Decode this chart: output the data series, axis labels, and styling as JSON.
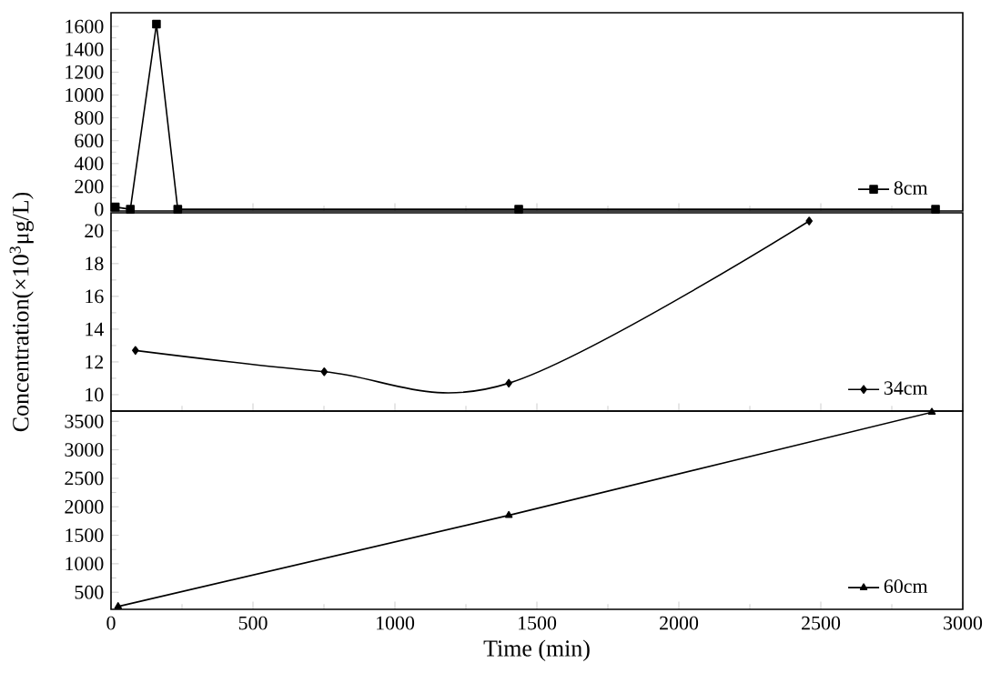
{
  "chart_data": [
    {
      "type": "line",
      "xlim": [
        0,
        3000
      ],
      "xticks": [
        0,
        500,
        1000,
        1500,
        2000,
        2500,
        3000
      ],
      "ylim": [
        -15,
        1720
      ],
      "yticks": [
        0,
        200,
        400,
        600,
        800,
        1000,
        1200,
        1400,
        1600
      ],
      "tick_labels": "y",
      "marker": "square",
      "legend": "bottom right",
      "series": [
        {
          "name": "8cm",
          "color": "#000000",
          "x": [
            15,
            68,
            160,
            235,
            1436,
            2904
          ],
          "values": [
            20,
            0,
            1620,
            0,
            0,
            0
          ]
        }
      ]
    },
    {
      "type": "line",
      "xlim": [
        0,
        3000
      ],
      "xticks": [
        0,
        500,
        1000,
        1500,
        2000,
        2500,
        3000
      ],
      "ylim": [
        9,
        21.1
      ],
      "yticks": [
        10,
        12,
        14,
        16,
        18,
        20
      ],
      "tick_labels": "y",
      "marker": "diamond",
      "legend": "bottom right",
      "ylabel": "Concentration(×10$^{3}$μg/L)",
      "series": [
        {
          "name": "34cm",
          "color": "#000000",
          "x": [
            86,
            751,
            1401,
            2459
          ],
          "values": [
            12.7,
            11.4,
            10.7,
            20.6
          ]
        }
      ]
    },
    {
      "type": "line",
      "xlim": [
        0,
        3000
      ],
      "xticks": [
        0,
        500,
        1000,
        1500,
        2000,
        2500,
        3000
      ],
      "ylim": [
        200,
        3680
      ],
      "yticks": [
        500,
        1000,
        1500,
        2000,
        2500,
        3000,
        3500
      ],
      "marker": "triangle",
      "legend": "bottom right",
      "xlabel": "Time (min)",
      "series": [
        {
          "name": "60cm",
          "color": "#000000",
          "x": [
            25,
            1401,
            2891
          ],
          "values": [
            250,
            1850,
            3660
          ]
        }
      ]
    }
  ]
}
